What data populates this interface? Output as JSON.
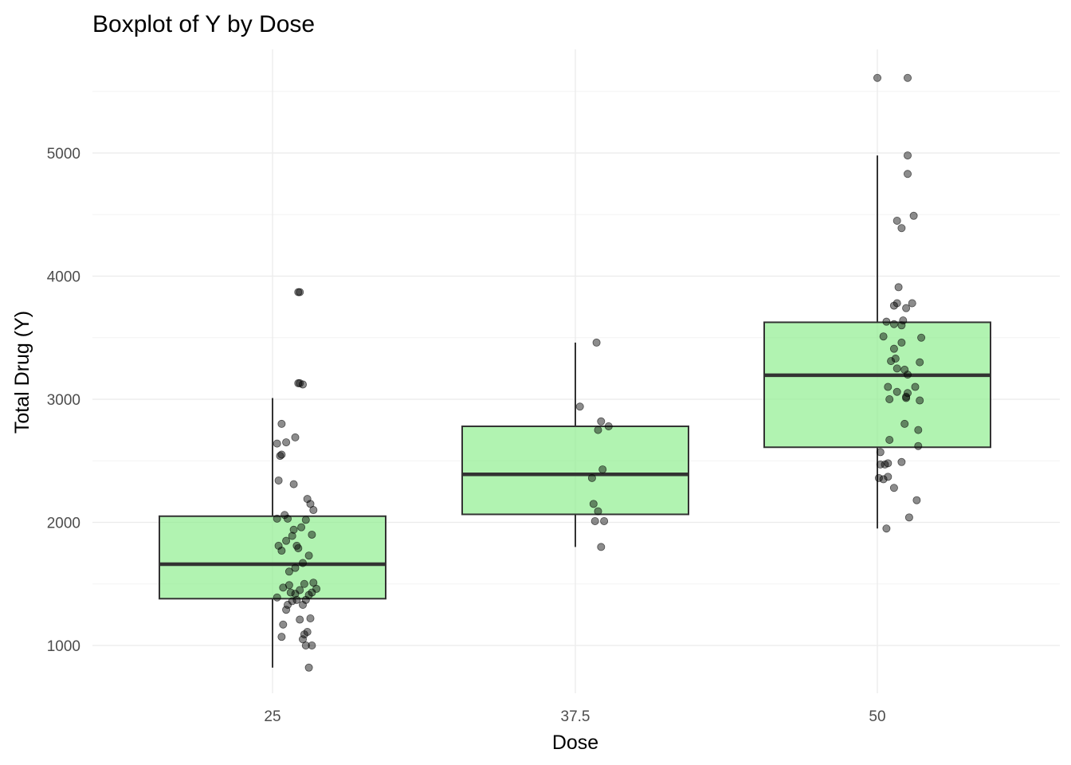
{
  "chart_data": {
    "type": "boxplot",
    "title": "Boxplot of Y by Dose",
    "xlabel": "Dose",
    "ylabel": "Total Drug (Y)",
    "categories": [
      "25",
      "37.5",
      "50"
    ],
    "ylim": [
      600,
      5700
    ],
    "y_ticks": [
      1000,
      2000,
      3000,
      4000,
      5000
    ],
    "grid": true,
    "legend": "none",
    "box_fill": "#90EE90",
    "box_fill_opacity": 0.7,
    "outline_color": "#333333",
    "point_color": "#000000",
    "boxes": [
      {
        "category": "25",
        "lower_whisker": 820,
        "q1": 1380,
        "median": 1660,
        "q3": 2050,
        "upper_whisker": 3010
      },
      {
        "category": "37.5",
        "lower_whisker": 1800,
        "q1": 2065,
        "median": 2390,
        "q3": 2780,
        "upper_whisker": 3460
      },
      {
        "category": "50",
        "lower_whisker": 1950,
        "q1": 2610,
        "median": 3195,
        "q3": 3625,
        "upper_whisker": 4980
      }
    ],
    "points": [
      {
        "category": "25",
        "values": [
          {
            "j": 0.18,
            "y": 3870
          },
          {
            "j": 0.17,
            "y": 3870
          },
          {
            "j": 0.18,
            "y": 3130
          },
          {
            "j": 0.17,
            "y": 3130
          },
          {
            "j": 0.2,
            "y": 3120
          },
          {
            "j": 0.06,
            "y": 2800
          },
          {
            "j": 0.15,
            "y": 2690
          },
          {
            "j": 0.14,
            "y": 2310
          },
          {
            "j": 0.23,
            "y": 2190
          },
          {
            "j": 0.25,
            "y": 2150
          },
          {
            "j": 0.08,
            "y": 2060
          },
          {
            "j": 0.03,
            "y": 2030
          },
          {
            "j": 0.1,
            "y": 2030
          },
          {
            "j": 0.22,
            "y": 2020
          },
          {
            "j": 0.14,
            "y": 1940
          },
          {
            "j": 0.13,
            "y": 1890
          },
          {
            "j": 0.09,
            "y": 1850
          },
          {
            "j": 0.19,
            "y": 1960
          },
          {
            "j": 0.26,
            "y": 1900
          },
          {
            "j": 0.17,
            "y": 1790
          },
          {
            "j": 0.24,
            "y": 1730
          },
          {
            "j": 0.15,
            "y": 1630
          },
          {
            "j": 0.11,
            "y": 1600
          },
          {
            "j": 0.06,
            "y": 1770
          },
          {
            "j": 0.2,
            "y": 1670
          },
          {
            "j": 0.11,
            "y": 1490
          },
          {
            "j": 0.27,
            "y": 1510
          },
          {
            "j": 0.21,
            "y": 1500
          },
          {
            "j": 0.29,
            "y": 1460
          },
          {
            "j": 0.07,
            "y": 1470
          },
          {
            "j": 0.12,
            "y": 1430
          },
          {
            "j": 0.18,
            "y": 1450
          },
          {
            "j": 0.26,
            "y": 1430
          },
          {
            "j": 0.15,
            "y": 1420
          },
          {
            "j": 0.03,
            "y": 1390
          },
          {
            "j": 0.24,
            "y": 1410
          },
          {
            "j": 0.16,
            "y": 1370
          },
          {
            "j": 0.13,
            "y": 1360
          },
          {
            "j": 0.22,
            "y": 1370
          },
          {
            "j": 0.1,
            "y": 1330
          },
          {
            "j": 0.09,
            "y": 1290
          },
          {
            "j": 0.2,
            "y": 1330
          },
          {
            "j": 0.18,
            "y": 1210
          },
          {
            "j": 0.25,
            "y": 1220
          },
          {
            "j": 0.07,
            "y": 1170
          },
          {
            "j": 0.23,
            "y": 1110
          },
          {
            "j": 0.21,
            "y": 1090
          },
          {
            "j": 0.06,
            "y": 1070
          },
          {
            "j": 0.2,
            "y": 1050
          },
          {
            "j": 0.22,
            "y": 1000
          },
          {
            "j": 0.26,
            "y": 1000
          },
          {
            "j": 0.24,
            "y": 820
          },
          {
            "j": 0.05,
            "y": 2540
          },
          {
            "j": 0.06,
            "y": 2550
          },
          {
            "j": 0.09,
            "y": 2650
          },
          {
            "j": 0.03,
            "y": 2640
          },
          {
            "j": 0.04,
            "y": 2340
          },
          {
            "j": 0.27,
            "y": 2100
          },
          {
            "j": 0.16,
            "y": 1810
          },
          {
            "j": 0.04,
            "y": 1810
          }
        ]
      },
      {
        "category": "37.5",
        "values": [
          {
            "j": 0.14,
            "y": 3460
          },
          {
            "j": 0.03,
            "y": 2940
          },
          {
            "j": 0.17,
            "y": 2820
          },
          {
            "j": 0.22,
            "y": 2780
          },
          {
            "j": 0.15,
            "y": 2750
          },
          {
            "j": 0.18,
            "y": 2430
          },
          {
            "j": 0.11,
            "y": 2360
          },
          {
            "j": 0.12,
            "y": 2150
          },
          {
            "j": 0.15,
            "y": 2090
          },
          {
            "j": 0.19,
            "y": 2010
          },
          {
            "j": 0.13,
            "y": 2010
          },
          {
            "j": 0.17,
            "y": 1800
          }
        ]
      },
      {
        "category": "50",
        "values": [
          {
            "j": 0.2,
            "y": 5610
          },
          {
            "j": 0.0,
            "y": 5610
          },
          {
            "j": 0.2,
            "y": 4830
          },
          {
            "j": 0.2,
            "y": 4980
          },
          {
            "j": 0.24,
            "y": 4490
          },
          {
            "j": 0.13,
            "y": 4450
          },
          {
            "j": 0.16,
            "y": 4390
          },
          {
            "j": 0.14,
            "y": 3910
          },
          {
            "j": 0.13,
            "y": 3780
          },
          {
            "j": 0.19,
            "y": 3740
          },
          {
            "j": 0.23,
            "y": 3780
          },
          {
            "j": 0.11,
            "y": 3760
          },
          {
            "j": 0.17,
            "y": 3640
          },
          {
            "j": 0.16,
            "y": 3600
          },
          {
            "j": 0.06,
            "y": 3630
          },
          {
            "j": 0.11,
            "y": 3610
          },
          {
            "j": 0.04,
            "y": 3510
          },
          {
            "j": 0.29,
            "y": 3500
          },
          {
            "j": 0.16,
            "y": 3460
          },
          {
            "j": 0.11,
            "y": 3410
          },
          {
            "j": 0.09,
            "y": 3310
          },
          {
            "j": 0.28,
            "y": 3300
          },
          {
            "j": 0.12,
            "y": 3330
          },
          {
            "j": 0.18,
            "y": 3240
          },
          {
            "j": 0.2,
            "y": 3200
          },
          {
            "j": 0.07,
            "y": 3100
          },
          {
            "j": 0.25,
            "y": 3100
          },
          {
            "j": 0.13,
            "y": 3060
          },
          {
            "j": 0.2,
            "y": 3050
          },
          {
            "j": 0.19,
            "y": 3020
          },
          {
            "j": 0.08,
            "y": 3000
          },
          {
            "j": 0.19,
            "y": 3010
          },
          {
            "j": 0.28,
            "y": 2990
          },
          {
            "j": 0.18,
            "y": 2800
          },
          {
            "j": 0.27,
            "y": 2750
          },
          {
            "j": 0.08,
            "y": 2670
          },
          {
            "j": 0.02,
            "y": 2570
          },
          {
            "j": 0.27,
            "y": 2620
          },
          {
            "j": 0.07,
            "y": 2480
          },
          {
            "j": 0.05,
            "y": 2470
          },
          {
            "j": 0.02,
            "y": 2470
          },
          {
            "j": 0.07,
            "y": 2370
          },
          {
            "j": 0.01,
            "y": 2360
          },
          {
            "j": 0.04,
            "y": 2350
          },
          {
            "j": 0.11,
            "y": 2280
          },
          {
            "j": 0.26,
            "y": 2180
          },
          {
            "j": 0.21,
            "y": 2040
          },
          {
            "j": 0.06,
            "y": 1950
          },
          {
            "j": 0.13,
            "y": 3250
          },
          {
            "j": 0.16,
            "y": 2490
          }
        ]
      }
    ]
  }
}
